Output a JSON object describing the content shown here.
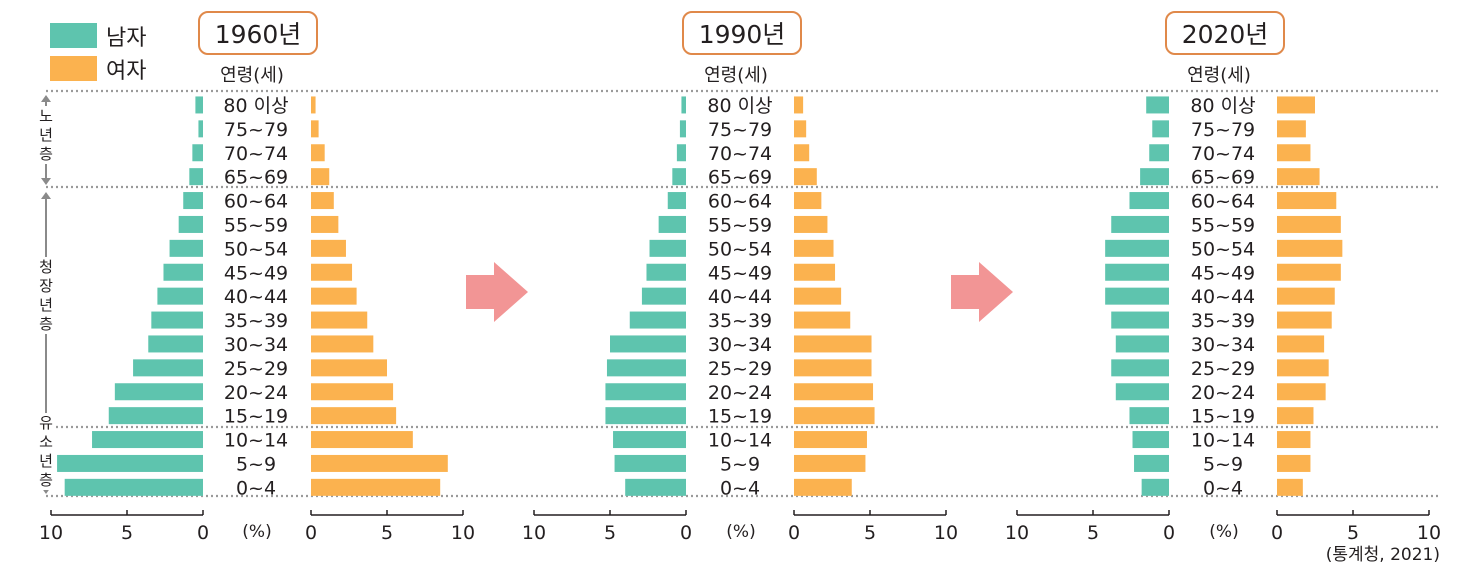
{
  "legend": {
    "male_label": "남자",
    "female_label": "여자",
    "male_color": "#5ec4ae",
    "female_color": "#fbb24f"
  },
  "age_axis_label": "연령(세)",
  "percent_label": "(%)",
  "age_groups": [
    "80 이상",
    "75~79",
    "70~74",
    "65~69",
    "60~64",
    "55~59",
    "50~54",
    "45~49",
    "40~44",
    "35~39",
    "30~34",
    "25~29",
    "20~24",
    "15~19",
    "10~14",
    "5~9",
    "0~4"
  ],
  "groups": [
    {
      "label": "노년층"
    },
    {
      "label": "청장년층"
    },
    {
      "label": "유소년층"
    }
  ],
  "arrow_color": "#f29595",
  "source": "(통계청, 2021)",
  "chart_data": [
    {
      "type": "bar",
      "title": "1960년",
      "categories": [
        "80 이상",
        "75~79",
        "70~74",
        "65~69",
        "60~64",
        "55~59",
        "50~54",
        "45~49",
        "40~44",
        "35~39",
        "30~34",
        "25~29",
        "20~24",
        "15~19",
        "10~14",
        "5~9",
        "0~4"
      ],
      "xlim": [
        0,
        10
      ],
      "xticks": [
        10,
        5,
        0
      ],
      "series": [
        {
          "name": "남자",
          "values": [
            0.5,
            0.3,
            0.7,
            0.9,
            1.3,
            1.6,
            2.2,
            2.6,
            3.0,
            3.4,
            3.6,
            4.6,
            5.8,
            6.2,
            7.3,
            9.6,
            9.1
          ]
        },
        {
          "name": "여자",
          "values": [
            0.3,
            0.5,
            0.9,
            1.2,
            1.5,
            1.8,
            2.3,
            2.7,
            3.0,
            3.7,
            4.1,
            5.0,
            5.4,
            5.6,
            6.7,
            9.0,
            8.5
          ]
        }
      ]
    },
    {
      "type": "bar",
      "title": "1990년",
      "categories": [
        "80 이상",
        "75~79",
        "70~74",
        "65~69",
        "60~64",
        "55~59",
        "50~54",
        "45~49",
        "40~44",
        "35~39",
        "30~34",
        "25~29",
        "20~24",
        "15~19",
        "10~14",
        "5~9",
        "0~4"
      ],
      "xlim": [
        0,
        10
      ],
      "xticks": [
        10,
        5,
        0
      ],
      "series": [
        {
          "name": "남자",
          "values": [
            0.3,
            0.4,
            0.6,
            0.9,
            1.2,
            1.8,
            2.4,
            2.6,
            2.9,
            3.7,
            5.0,
            5.2,
            5.3,
            5.3,
            4.8,
            4.7,
            4.0
          ]
        },
        {
          "name": "여자",
          "values": [
            0.6,
            0.8,
            1.0,
            1.5,
            1.8,
            2.2,
            2.6,
            2.7,
            3.1,
            3.7,
            5.1,
            5.1,
            5.2,
            5.3,
            4.8,
            4.7,
            3.8
          ]
        }
      ]
    },
    {
      "type": "bar",
      "title": "2020년",
      "categories": [
        "80 이상",
        "75~79",
        "70~74",
        "65~69",
        "60~64",
        "55~59",
        "50~54",
        "45~49",
        "40~44",
        "35~39",
        "30~34",
        "25~29",
        "20~24",
        "15~19",
        "10~14",
        "5~9",
        "0~4"
      ],
      "xlim": [
        0,
        10
      ],
      "xticks": [
        10,
        5,
        0
      ],
      "series": [
        {
          "name": "남자",
          "values": [
            1.5,
            1.1,
            1.3,
            1.9,
            2.6,
            3.8,
            4.2,
            4.2,
            4.2,
            3.8,
            3.5,
            3.8,
            3.5,
            2.6,
            2.4,
            2.3,
            1.8
          ]
        },
        {
          "name": "여자",
          "values": [
            2.5,
            1.9,
            2.2,
            2.8,
            3.9,
            4.2,
            4.3,
            4.2,
            3.8,
            3.6,
            3.1,
            3.4,
            3.2,
            2.4,
            2.2,
            2.2,
            1.7
          ]
        }
      ]
    }
  ]
}
